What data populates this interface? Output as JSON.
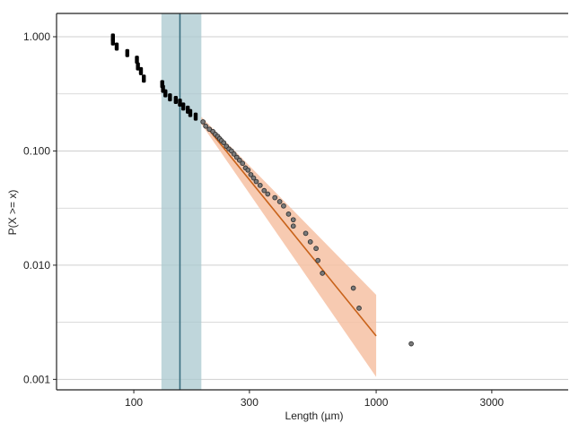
{
  "chart_data": {
    "type": "scatter",
    "title": "",
    "xlabel": "Length (µm)",
    "ylabel": "P(X >= x)",
    "x_scale": "log",
    "y_scale": "log",
    "xlim": [
      48,
      6200
    ],
    "ylim": [
      0.00081,
      1.6
    ],
    "grid": "horizontal",
    "x_ticks": [
      {
        "value": 100,
        "label": "100"
      },
      {
        "value": 300,
        "label": "300"
      },
      {
        "value": 1000,
        "label": "1000"
      },
      {
        "value": 3000,
        "label": "3000"
      }
    ],
    "y_ticks": [
      {
        "value": 0.001,
        "label": "0.001"
      },
      {
        "value": 0.01,
        "label": "0.010"
      },
      {
        "value": 0.1,
        "label": "0.100"
      },
      {
        "value": 1,
        "label": "1.000"
      }
    ],
    "y_minor_gridlines": [
      0.00316,
      0.0316,
      0.316
    ],
    "colors": {
      "points_below_xmin": "#000000",
      "points_fit": "#7a7a7a",
      "fit_line": "#c8621a",
      "fit_band": "#f6c1a3",
      "xmin_line": "#3a6f80",
      "xmin_band": "#a9c8cf",
      "grid": "#cfcfcf"
    },
    "xmin_estimate": {
      "value": 155,
      "ci_low": 130,
      "ci_high": 190
    },
    "fit": {
      "x_start": 190,
      "y_start": 0.185,
      "x_end": 1000,
      "y_end": 0.0024,
      "band_upper_end": 0.0055,
      "band_lower_end": 0.00105,
      "band_width_start": 0.03
    },
    "series": [
      {
        "role": "below-xmin",
        "x": [
          82,
          82,
          85,
          94,
          103,
          104,
          107,
          110
        ],
        "y": [
          0.985,
          0.91,
          0.82,
          0.72,
          0.63,
          0.55,
          0.5,
          0.43
        ]
      },
      {
        "role": "near-xmin",
        "x": [
          131,
          132,
          135,
          141,
          149,
          155,
          160,
          167,
          171,
          180
        ],
        "y": [
          0.385,
          0.35,
          0.32,
          0.295,
          0.28,
          0.265,
          0.245,
          0.23,
          0.215,
          0.2
        ]
      },
      {
        "role": "fit-region",
        "x": [
          193,
          198,
          205,
          212,
          217,
          222,
          226,
          230,
          235,
          241,
          247,
          253,
          259,
          266,
          273,
          281,
          289,
          296,
          304,
          312,
          320,
          332,
          345,
          357,
          382,
          400,
          415,
          435,
          455,
          455,
          512,
          535,
          565,
          575,
          600,
          805,
          850,
          1395
        ],
        "y": [
          0.18,
          0.165,
          0.155,
          0.148,
          0.14,
          0.134,
          0.128,
          0.123,
          0.118,
          0.11,
          0.104,
          0.1,
          0.094,
          0.088,
          0.083,
          0.078,
          0.071,
          0.068,
          0.062,
          0.058,
          0.054,
          0.05,
          0.045,
          0.042,
          0.039,
          0.036,
          0.033,
          0.028,
          0.025,
          0.022,
          0.019,
          0.016,
          0.014,
          0.011,
          0.0085,
          0.0063,
          0.0042,
          0.00205
        ]
      }
    ]
  }
}
